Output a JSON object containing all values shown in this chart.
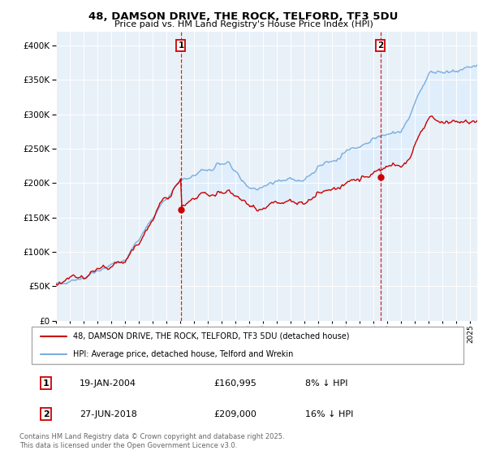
{
  "title1": "48, DAMSON DRIVE, THE ROCK, TELFORD, TF3 5DU",
  "title2": "Price paid vs. HM Land Registry's House Price Index (HPI)",
  "legend_label1": "48, DAMSON DRIVE, THE ROCK, TELFORD, TF3 5DU (detached house)",
  "legend_label2": "HPI: Average price, detached house, Telford and Wrekin",
  "annotation1_date": "19-JAN-2004",
  "annotation1_price": "£160,995",
  "annotation1_hpi": "8% ↓ HPI",
  "annotation1_year": 2004.05,
  "annotation1_value": 160995,
  "annotation2_date": "27-JUN-2018",
  "annotation2_price": "£209,000",
  "annotation2_hpi": "16% ↓ HPI",
  "annotation2_year": 2018.49,
  "annotation2_value": 209000,
  "color_price": "#cc0000",
  "color_hpi": "#7aaddd",
  "color_fill": "#ddeeff",
  "footer": "Contains HM Land Registry data © Crown copyright and database right 2025.\nThis data is licensed under the Open Government Licence v3.0.",
  "ylim": [
    0,
    420000
  ],
  "yticks": [
    0,
    50000,
    100000,
    150000,
    200000,
    250000,
    300000,
    350000,
    400000
  ],
  "background": "#e8f0f8"
}
